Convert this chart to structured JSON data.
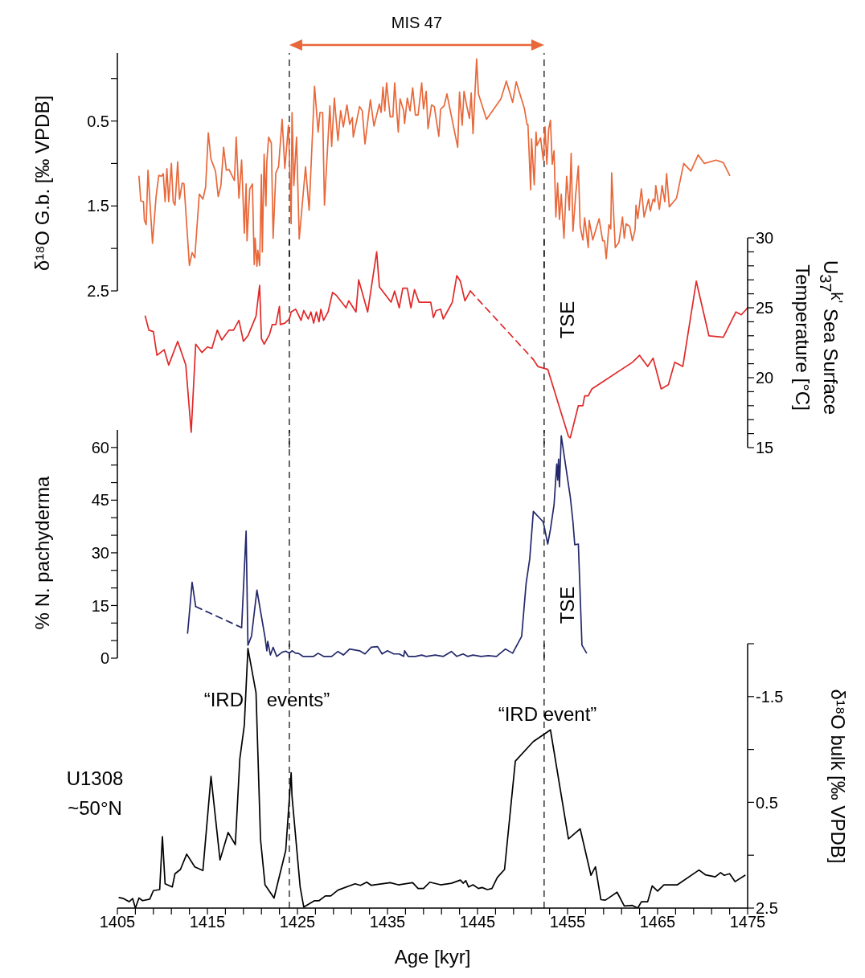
{
  "chart_data": [
    {
      "type": "line",
      "ylabel": "δ¹⁸O G.b. [‰ VPDB]",
      "xlim": [
        1405,
        1475
      ],
      "ylim": [
        2.5,
        -0.3
      ],
      "yticks": [
        {
          "value": 0,
          "label": null
        },
        0.5,
        {
          "value": 1,
          "label": null
        },
        1.5,
        {
          "value": 2,
          "label": null
        },
        2.5
      ],
      "tick_labels": "y",
      "annotations": [
        "MIS 47"
      ],
      "ref_lines": [
        {
          "axis": "x",
          "value": 1424.1,
          "line_style": "dashed"
        },
        {
          "axis": "x",
          "value": 1452.4,
          "line_style": "dashed"
        }
      ],
      "series": [
        {
          "color": "#e8683a",
          "x": [
            1407.4,
            1407.6,
            1407.9,
            1408.0,
            1408.2,
            1408.4,
            1408.9,
            1409.3,
            1409.6,
            1409.9,
            1410.1,
            1410.3,
            1410.5,
            1410.7,
            1411.0,
            1411.2,
            1411.4,
            1411.7,
            1411.9,
            1412.2,
            1412.4,
            1413.0,
            1413.3,
            1413.6,
            1414.1,
            1414.5,
            1414.8,
            1415.1,
            1415.4,
            1415.9,
            1416.2,
            1416.5,
            1416.8,
            1417.1,
            1417.4,
            1418.0,
            1418.2,
            1418.5,
            1418.8,
            1419.1,
            1419.3,
            1419.4,
            1419.7,
            1420.0,
            1420.2,
            1420.3,
            1420.5,
            1420.6,
            1420.8,
            1421.0,
            1421.1,
            1421.3,
            1421.5,
            1421.6,
            1421.8,
            1422.1,
            1422.3,
            1422.6,
            1422.9,
            1423.3,
            1423.6,
            1424.0,
            1424.2,
            1424.3,
            1424.4,
            1424.6,
            1424.9,
            1425.2,
            1425.9,
            1426.3,
            1426.9,
            1427.3,
            1427.5,
            1427.8,
            1428.0,
            1428.6,
            1428.8,
            1429.1,
            1429.5,
            1429.8,
            1430.1,
            1430.5,
            1430.8,
            1431.1,
            1431.2,
            1431.9,
            1432.2,
            1432.5,
            1433.1,
            1433.5,
            1434.1,
            1434.3,
            1434.5,
            1434.7,
            1434.9,
            1435.3,
            1435.6,
            1435.8,
            1436.2,
            1436.4,
            1436.8,
            1436.9,
            1437.2,
            1437.5,
            1437.8,
            1438.1,
            1438.4,
            1438.8,
            1439.0,
            1439.3,
            1439.5,
            1439.9,
            1440.2,
            1440.7,
            1440.9,
            1441.3,
            1441.6,
            1442.8,
            1443.0,
            1443.3,
            1443.5,
            1443.8,
            1444.1,
            1444.3,
            1444.5,
            1444.9,
            1445.1,
            1446.0,
            1447.6,
            1448.2,
            1448.9,
            1449.3,
            1450.2,
            1450.5,
            1450.6,
            1450.9,
            1451.0,
            1451.3,
            1451.5,
            1451.6,
            1452.0,
            1452.3,
            1452.5,
            1452.7,
            1452.9,
            1453.1,
            1453.3,
            1453.5,
            1453.7,
            1453.9,
            1454.1,
            1454.3,
            1454.6,
            1454.9,
            1455.2,
            1455.4,
            1455.6,
            1455.9,
            1456.2,
            1456.4,
            1456.7,
            1456.9,
            1457.3,
            1457.4,
            1457.8,
            1458.5,
            1458.9,
            1459.1,
            1459.3,
            1459.6,
            1459.8,
            1459.9,
            1460.3,
            1460.7,
            1461.1,
            1461.3,
            1461.5,
            1461.9,
            1462.2,
            1462.5,
            1462.6,
            1462.8,
            1463.2,
            1463.5,
            1464.0,
            1464.2,
            1464.5,
            1464.7,
            1464.8,
            1465.2,
            1465.5,
            1465.8,
            1466.0,
            1466.3,
            1467.1,
            1467.9,
            1468.7,
            1469.5,
            1470.2,
            1471.5,
            1472.3,
            1473.0
          ],
          "values": [
            1.15,
            1.44,
            1.45,
            1.67,
            1.72,
            1.08,
            1.94,
            1.39,
            1.14,
            1.15,
            1.12,
            1.45,
            1.06,
            1.45,
            1.0,
            1.45,
            1.49,
            0.98,
            1.42,
            1.23,
            1.24,
            2.2,
            2.05,
            2.11,
            1.36,
            1.42,
            1.28,
            0.64,
            0.95,
            1.09,
            1.39,
            1.26,
            0.81,
            1.08,
            1.07,
            1.2,
            0.69,
            1.41,
            0.96,
            1.82,
            1.24,
            1.91,
            1.3,
            1.24,
            2.19,
            1.88,
            2.21,
            2.02,
            2.2,
            1.13,
            2.04,
            0.89,
            1.5,
            0.98,
            0.69,
            0.76,
            1.88,
            1.11,
            1.04,
            0.48,
            1.06,
            0.55,
            1.28,
            1.71,
            0.4,
            1.26,
            0.69,
            1.89,
            1.04,
            1.55,
            0.09,
            0.63,
            0.4,
            0.4,
            1.49,
            0.32,
            0.8,
            0.23,
            0.73,
            0.38,
            0.57,
            0.31,
            0.54,
            0.46,
            0.69,
            0.33,
            0.38,
            0.77,
            0.25,
            0.56,
            0.3,
            0.4,
            0.1,
            0.38,
            0.05,
            0.45,
            0.45,
            0.05,
            0.63,
            0.24,
            0.38,
            0.53,
            0.23,
            0.38,
            0.11,
            0.43,
            0.43,
            0.05,
            0.36,
            0.15,
            0.59,
            0.31,
            0.33,
            0.68,
            0.36,
            0.32,
            0.18,
            0.81,
            0.16,
            0.55,
            0.15,
            0.32,
            0.47,
            0.17,
            0.65,
            -0.23,
            0.18,
            0.48,
            0.24,
            0.03,
            0.28,
            0.04,
            0.35,
            0.54,
            0.54,
            1.31,
            0.71,
            1.25,
            0.63,
            0.79,
            0.7,
            0.96,
            0.57,
            1.01,
            0.6,
            0.49,
            1.01,
            0.85,
            1.63,
            1.23,
            1.66,
            1.36,
            1.88,
            1.15,
            1.55,
            0.88,
            1.8,
            1.37,
            1.03,
            1.74,
            1.9,
            1.64,
            1.99,
            1.67,
            1.9,
            1.65,
            1.91,
            1.91,
            2.12,
            1.72,
            1.77,
            1.11,
            1.99,
            1.93,
            1.63,
            1.88,
            1.71,
            1.74,
            1.91,
            1.78,
            1.49,
            1.65,
            1.3,
            1.63,
            1.42,
            1.56,
            1.42,
            1.45,
            1.26,
            1.54,
            1.26,
            1.45,
            1.12,
            1.51,
            1.41,
            1.0,
            1.09,
            0.9,
            1.0,
            0.96,
            0.99,
            1.14
          ]
        }
      ]
    },
    {
      "type": "line",
      "ylabel": "U$_{37}$$^{k'}$ Sea Surface Temperature [°C]",
      "xlim": [
        1405,
        1475
      ],
      "ylim": [
        15,
        30
      ],
      "yticks": [
        15,
        {
          "value": 16,
          "label": null
        },
        {
          "value": 17,
          "label": null
        },
        {
          "value": 18,
          "label": null
        },
        {
          "value": 19,
          "label": null
        },
        20,
        {
          "value": 21,
          "label": null
        },
        {
          "value": 22,
          "label": null
        },
        {
          "value": 23,
          "label": null
        },
        {
          "value": 24,
          "label": null
        },
        25,
        {
          "value": 26,
          "label": null
        },
        {
          "value": 27,
          "label": null
        },
        {
          "value": 28,
          "label": null
        },
        {
          "value": 29,
          "label": null
        },
        30
      ],
      "tick_labels": "y",
      "annotations": [
        "TSE"
      ],
      "ref_lines": [
        {
          "axis": "x",
          "value": 1424.1,
          "line_style": "dashed"
        },
        {
          "axis": "x",
          "value": 1452.4,
          "line_style": "dashed"
        }
      ],
      "series": [
        {
          "color": "#e02828",
          "x": [
            1408.1,
            1408.5,
            1409.0,
            1409.4,
            1410.2,
            1410.7,
            1411.7,
            1412.6,
            1413.2,
            1413.7,
            1414.4,
            1415.0,
            1415.5,
            1416.1,
            1416.6,
            1417.4,
            1417.9,
            1418.5,
            1419.0,
            1419.5,
            1420.4,
            1420.8,
            1421.0,
            1421.3,
            1421.9,
            1422.2,
            1422.6,
            1423.0,
            1423.1,
            1423.6,
            1424.1,
            1424.3,
            1424.8,
            1425.4,
            1425.7,
            1426.2,
            1426.5,
            1426.8,
            1427.1,
            1427.4,
            1427.6,
            1427.9,
            1428.4,
            1428.9,
            1429.3,
            1430.4,
            1430.7,
            1431.5,
            1431.8,
            1432.8,
            1433.8,
            1434.1,
            1435.4,
            1435.8,
            1436.3,
            1436.7,
            1437.2,
            1437.6,
            1438.0,
            1438.5,
            1439.8,
            1440.1,
            1440.4,
            1440.9,
            1441.2,
            1441.7,
            1442.2,
            1442.7,
            1443.1,
            1443.6,
            1444.2
          ],
          "values": [
            24.4,
            23.4,
            23.3,
            21.6,
            22.0,
            20.9,
            22.6,
            20.9,
            16.1,
            22.4,
            21.8,
            22.2,
            22.1,
            23.4,
            22.7,
            23.4,
            23.4,
            24.1,
            22.6,
            23.0,
            24.4,
            26.6,
            22.8,
            22.4,
            23.1,
            23.8,
            23.8,
            25.1,
            23.8,
            23.9,
            24.2,
            24.7,
            24.9,
            24.1,
            24.8,
            24.2,
            24.7,
            23.9,
            24.7,
            24.0,
            24.9,
            24.1,
            24.7,
            26.1,
            25.9,
            25.0,
            25.5,
            24.7,
            27.0,
            24.7,
            29.0,
            26.5,
            25.4,
            26.2,
            25.0,
            26.4,
            26.4,
            25.0,
            26.3,
            25.4,
            25.4,
            24.3,
            24.8,
            24.9,
            24.2,
            24.8,
            25.4,
            27.3,
            26.9,
            25.5,
            26.2
          ]
        },
        {
          "color": "#e02828",
          "line_style": "dashed",
          "x": [
            1444.2,
            1451.2
          ],
          "values": [
            26.2,
            21.3
          ]
        },
        {
          "color": "#e02828",
          "x": [
            1451.2,
            1451.7,
            1452.8,
            1455.1,
            1455.3,
            1456.2,
            1456.7,
            1456.9,
            1457.3,
            1457.7,
            1462.2,
            1463.0,
            1463.9,
            1464.5,
            1465.4,
            1466.2,
            1466.9,
            1467.8,
            1469.3,
            1470.7,
            1472.3,
            1473.7,
            1474.3,
            1475.0
          ],
          "values": [
            21.3,
            20.8,
            20.6,
            15.8,
            15.7,
            18.0,
            18.0,
            18.7,
            18.7,
            19.2,
            21.1,
            21.6,
            20.8,
            21.4,
            19.2,
            19.5,
            21.1,
            20.8,
            26.9,
            23.0,
            22.9,
            24.7,
            24.5,
            25.0
          ]
        }
      ]
    },
    {
      "type": "line",
      "ylabel": "% N. pachyderma",
      "xlim": [
        1405,
        1475
      ],
      "ylim": [
        0,
        65
      ],
      "yticks": [
        0,
        {
          "value": 5,
          "label": null
        },
        {
          "value": 10,
          "label": null
        },
        15,
        {
          "value": 20,
          "label": null
        },
        {
          "value": 25,
          "label": null
        },
        30,
        {
          "value": 35,
          "label": null
        },
        {
          "value": 40,
          "label": null
        },
        45,
        {
          "value": 50,
          "label": null
        },
        {
          "value": 55,
          "label": null
        },
        60
      ],
      "tick_labels": "y",
      "annotations": [
        "TSE"
      ],
      "ref_lines": [
        {
          "axis": "x",
          "value": 1424.1,
          "line_style": "dashed"
        },
        {
          "axis": "x",
          "value": 1452.4,
          "line_style": "dashed"
        }
      ],
      "series": [
        {
          "color": "#23286b",
          "x": [
            1412.8,
            1413.1,
            1413.3,
            1413.7
          ],
          "values": [
            7.1,
            15.7,
            21.6,
            14.7
          ]
        },
        {
          "color": "#23286b",
          "line_style": "dashed",
          "x": [
            1413.7,
            1418.8
          ],
          "values": [
            14.7,
            8.7
          ]
        },
        {
          "color": "#23286b",
          "x": [
            1418.8,
            1419.3,
            1419.5,
            1419.9,
            1420.5,
            1421.0,
            1421.4,
            1421.6,
            1421.7,
            1422.0,
            1422.3,
            1422.7,
            1423.3,
            1423.7,
            1424.1,
            1424.4,
            1424.8,
            1425.1,
            1425.6,
            1426.8,
            1427.3,
            1427.9,
            1428.8,
            1429.5,
            1430.1,
            1430.8,
            1431.9,
            1432.5,
            1433.2,
            1433.9,
            1434.4,
            1435.0,
            1435.7,
            1436.3,
            1436.8,
            1436.9,
            1437.3,
            1438.1,
            1438.8,
            1439.3,
            1440.3,
            1441.2,
            1442.1,
            1442.7,
            1443.4,
            1443.9,
            1444.5,
            1445.4,
            1446.2,
            1447.1,
            1448.1,
            1448.9,
            1449.9,
            1450.4,
            1450.8,
            1451.2,
            1452.3,
            1452.8,
            1453.1,
            1453.5,
            1453.8,
            1453.9,
            1454.0,
            1454.1,
            1454.3,
            1455.3,
            1455.6,
            1455.8,
            1456.2,
            1456.6,
            1457.1
          ],
          "values": [
            8.7,
            36.2,
            3.7,
            6.3,
            19.4,
            11.9,
            5.9,
            2.1,
            4.8,
            0.9,
            3.1,
            0.5,
            1.7,
            2.0,
            1.4,
            2.1,
            1.4,
            1.4,
            0.5,
            0.5,
            1.4,
            0.5,
            0.5,
            1.9,
            0.9,
            2.6,
            2.1,
            1.2,
            3.1,
            3.3,
            1.2,
            2.1,
            1.2,
            1.2,
            0.5,
            2.1,
            0.5,
            0.5,
            0.9,
            0.5,
            0.9,
            0.5,
            1.9,
            0.5,
            1.2,
            0.5,
            0.9,
            0.5,
            0.7,
            0.5,
            2.6,
            1.4,
            6.2,
            21.3,
            28.3,
            41.8,
            38.8,
            32.5,
            36.7,
            43.7,
            55.3,
            50.7,
            56.7,
            48.8,
            63.3,
            46.0,
            38.8,
            32.3,
            32.5,
            3.7,
            1.5
          ]
        }
      ]
    },
    {
      "type": "line",
      "xlabel": "Age [kyr]",
      "ylabel": "δ¹⁸O bulk [‰ VPDB]",
      "xlim": [
        1405,
        1475
      ],
      "xticks": [
        1405,
        {
          "value": 1407,
          "label": null
        },
        {
          "value": 1409,
          "label": null
        },
        {
          "value": 1411,
          "label": null
        },
        {
          "value": 1413,
          "label": null
        },
        1415,
        {
          "value": 1417,
          "label": null
        },
        {
          "value": 1419,
          "label": null
        },
        {
          "value": 1421,
          "label": null
        },
        {
          "value": 1423,
          "label": null
        },
        1425,
        {
          "value": 1427,
          "label": null
        },
        {
          "value": 1429,
          "label": null
        },
        {
          "value": 1431,
          "label": null
        },
        {
          "value": 1433,
          "label": null
        },
        1435,
        {
          "value": 1437,
          "label": null
        },
        {
          "value": 1439,
          "label": null
        },
        {
          "value": 1441,
          "label": null
        },
        {
          "value": 1443,
          "label": null
        },
        1445,
        {
          "value": 1447,
          "label": null
        },
        {
          "value": 1449,
          "label": null
        },
        {
          "value": 1451,
          "label": null
        },
        {
          "value": 1453,
          "label": null
        },
        1455,
        {
          "value": 1457,
          "label": null
        },
        {
          "value": 1459,
          "label": null
        },
        {
          "value": 1461,
          "label": null
        },
        {
          "value": 1463,
          "label": null
        },
        1465,
        {
          "value": 1467,
          "label": null
        },
        {
          "value": 1469,
          "label": null
        },
        {
          "value": 1471,
          "label": null
        },
        {
          "value": 1473,
          "label": null
        },
        1475
      ],
      "ylim": [
        2.5,
        -2.5
      ],
      "yticks": [
        {
          "value": -2.5,
          "label": null
        },
        -1.5,
        {
          "value": -0.5,
          "label": null
        },
        0.5,
        {
          "value": 1.5,
          "label": null
        },
        2.5
      ],
      "annotations": [
        "“IRD events”",
        "“IRD event”",
        "U1308",
        "~50°N"
      ],
      "ref_lines": [
        {
          "axis": "x",
          "value": 1424.1,
          "line_style": "dashed"
        },
        {
          "axis": "x",
          "value": 1452.4,
          "line_style": "dashed"
        }
      ],
      "series": [
        {
          "color": "#000000",
          "x": [
            1405.2,
            1405.7,
            1406.3,
            1406.7,
            1407.0,
            1407.4,
            1407.8,
            1408.6,
            1409.0,
            1409.7,
            1410.0,
            1410.3,
            1411.1,
            1411.4,
            1412.0,
            1412.7,
            1413.6,
            1414.5,
            1415.4,
            1416.4,
            1417.3,
            1418.1,
            1418.6,
            1419.1,
            1419.5,
            1420.4,
            1420.9,
            1421.4,
            1422.4,
            1423.7,
            1424.3,
            1424.4,
            1425.3,
            1425.7,
            1426.9,
            1427.4,
            1428.1,
            1428.7,
            1429.5,
            1431.4,
            1432.0,
            1432.7,
            1433.2,
            1435.3,
            1436.2,
            1437.8,
            1438.4,
            1439.0,
            1439.7,
            1440.9,
            1442.1,
            1443.1,
            1443.4,
            1443.7,
            1444.0,
            1444.5,
            1445.1,
            1445.5,
            1446.1,
            1446.6,
            1447.2,
            1448.0,
            1449.2,
            1451.2,
            1453.1,
            1455.1,
            1456.4,
            1457.6,
            1458.1,
            1458.7,
            1459.2,
            1460.5,
            1461.3,
            1462.2,
            1462.8,
            1463.2,
            1463.9,
            1464.4,
            1465.0,
            1465.7,
            1467.2,
            1469.6,
            1470.3,
            1471.4,
            1472.0,
            1472.4,
            1473.0,
            1473.6,
            1474.7
          ],
          "values": [
            2.3,
            2.32,
            2.38,
            2.32,
            2.5,
            2.31,
            2.36,
            2.33,
            2.17,
            2.15,
            1.15,
            2.04,
            2.1,
            1.85,
            1.77,
            1.48,
            1.72,
            1.79,
            0.01,
            1.59,
            1.07,
            1.3,
            -0.32,
            -0.96,
            -2.41,
            -1.57,
            1.2,
            2.06,
            2.31,
            1.41,
            -0.06,
            0.39,
            2.1,
            2.48,
            2.36,
            2.36,
            2.27,
            2.27,
            2.16,
            2.04,
            2.07,
            2.01,
            2.07,
            2.02,
            2.06,
            2.02,
            2.13,
            2.13,
            2.01,
            2.06,
            2.03,
            1.97,
            2.03,
            1.98,
            2.1,
            2.06,
            2.13,
            2.11,
            2.15,
            2.13,
            1.92,
            1.77,
            -0.28,
            -0.65,
            -0.87,
            1.19,
            1.0,
            1.88,
            1.72,
            2.34,
            2.35,
            2.2,
            2.46,
            2.45,
            2.5,
            2.38,
            2.38,
            2.08,
            2.18,
            2.06,
            2.06,
            1.78,
            1.87,
            1.91,
            1.83,
            1.88,
            1.85,
            2.0,
            1.88
          ]
        }
      ]
    }
  ]
}
